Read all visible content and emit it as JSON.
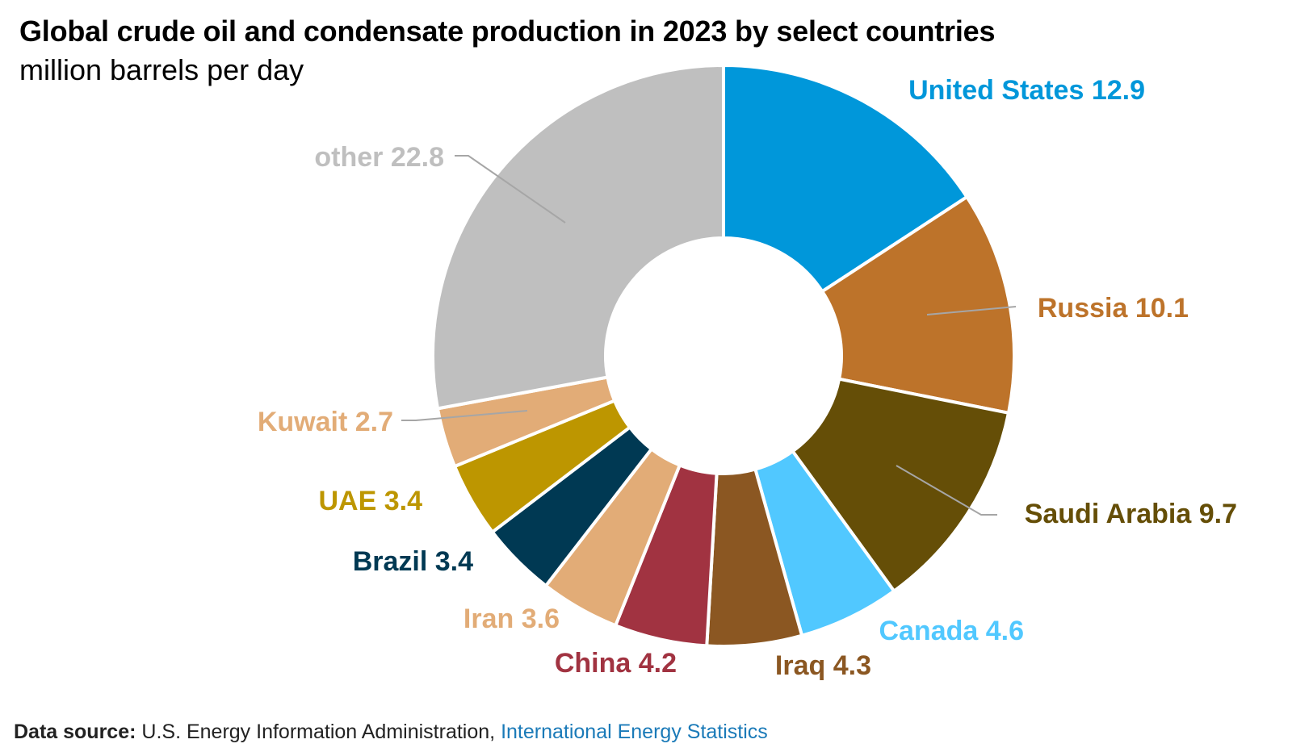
{
  "header": {
    "title": "Global crude oil and condensate production in 2023 by select countries",
    "subtitle": "million barrels per day"
  },
  "footer": {
    "source_label": "Data source:",
    "source_text": "U.S. Energy Information Administration,",
    "source_link": "International Energy Statistics"
  },
  "chart_data": {
    "type": "pie",
    "title": "Global crude oil and condensate production in 2023 by select countries",
    "subtitle": "million barrels per day",
    "donut": true,
    "start": "12 o'clock",
    "direction": "clockwise",
    "slices": [
      {
        "label": "United States",
        "value": 12.9,
        "display": "United States 12.9",
        "color": "#0097DA"
      },
      {
        "label": "Russia",
        "value": 10.1,
        "display": "Russia 10.1",
        "color": "#BD732A"
      },
      {
        "label": "Saudi Arabia",
        "value": 9.7,
        "display": "Saudi Arabia 9.7",
        "color": "#654E07"
      },
      {
        "label": "Canada",
        "value": 4.6,
        "display": "Canada 4.6",
        "color": "#51C8FF"
      },
      {
        "label": "Iraq",
        "value": 4.3,
        "display": "Iraq 4.3",
        "color": "#8B5722"
      },
      {
        "label": "China",
        "value": 4.2,
        "display": "China 4.2",
        "color": "#A13341"
      },
      {
        "label": "Iran",
        "value": 3.6,
        "display": "Iran 3.6",
        "color": "#E2AC77"
      },
      {
        "label": "Brazil",
        "value": 3.4,
        "display": "Brazil 3.4",
        "color": "#003953"
      },
      {
        "label": "UAE",
        "value": 3.4,
        "display": "UAE 3.4",
        "color": "#BD9600"
      },
      {
        "label": "Kuwait",
        "value": 2.7,
        "display": "Kuwait 2.7",
        "color": "#E2AC77"
      },
      {
        "label": "other",
        "value": 22.8,
        "display": "other 22.8",
        "color": "#BFBFBF"
      }
    ]
  }
}
